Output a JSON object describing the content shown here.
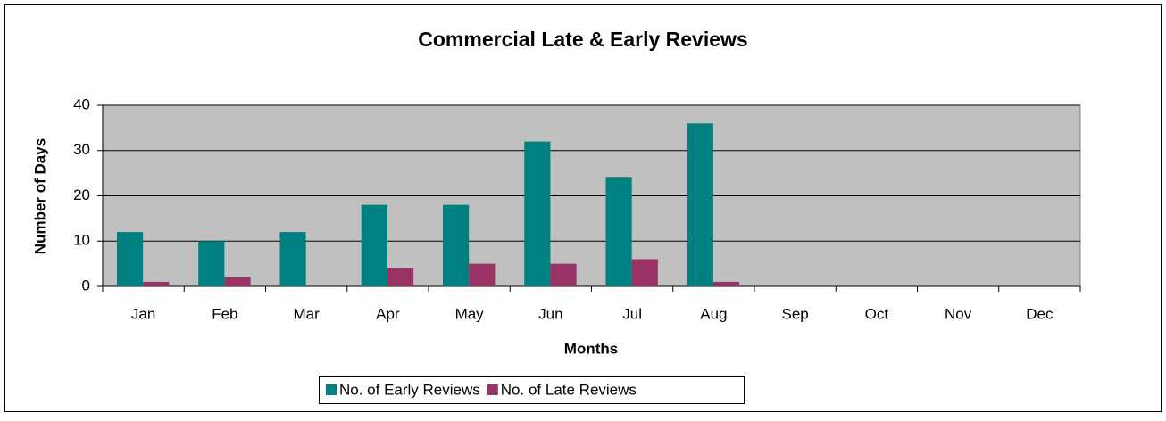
{
  "chart_data": {
    "type": "bar",
    "title": "Commercial Late & Early Reviews",
    "x_label": "Months",
    "y_label": "Number of Days",
    "categories": [
      "Jan",
      "Feb",
      "Mar",
      "Apr",
      "May",
      "Jun",
      "Jul",
      "Aug",
      "Sep",
      "Oct",
      "Nov",
      "Dec"
    ],
    "series": [
      {
        "name": "No. of Early Reviews",
        "color": "#008080",
        "values": [
          12,
          10,
          12,
          18,
          18,
          32,
          24,
          36,
          null,
          null,
          null,
          null
        ]
      },
      {
        "name": "No. of Late Reviews",
        "color": "#993366",
        "values": [
          1,
          2,
          0,
          4,
          5,
          5,
          6,
          1,
          null,
          null,
          null,
          null
        ]
      }
    ],
    "ylim": [
      0,
      40
    ],
    "yticks": [
      0,
      10,
      20,
      30,
      40
    ],
    "grid": true,
    "legend": "bottom"
  }
}
